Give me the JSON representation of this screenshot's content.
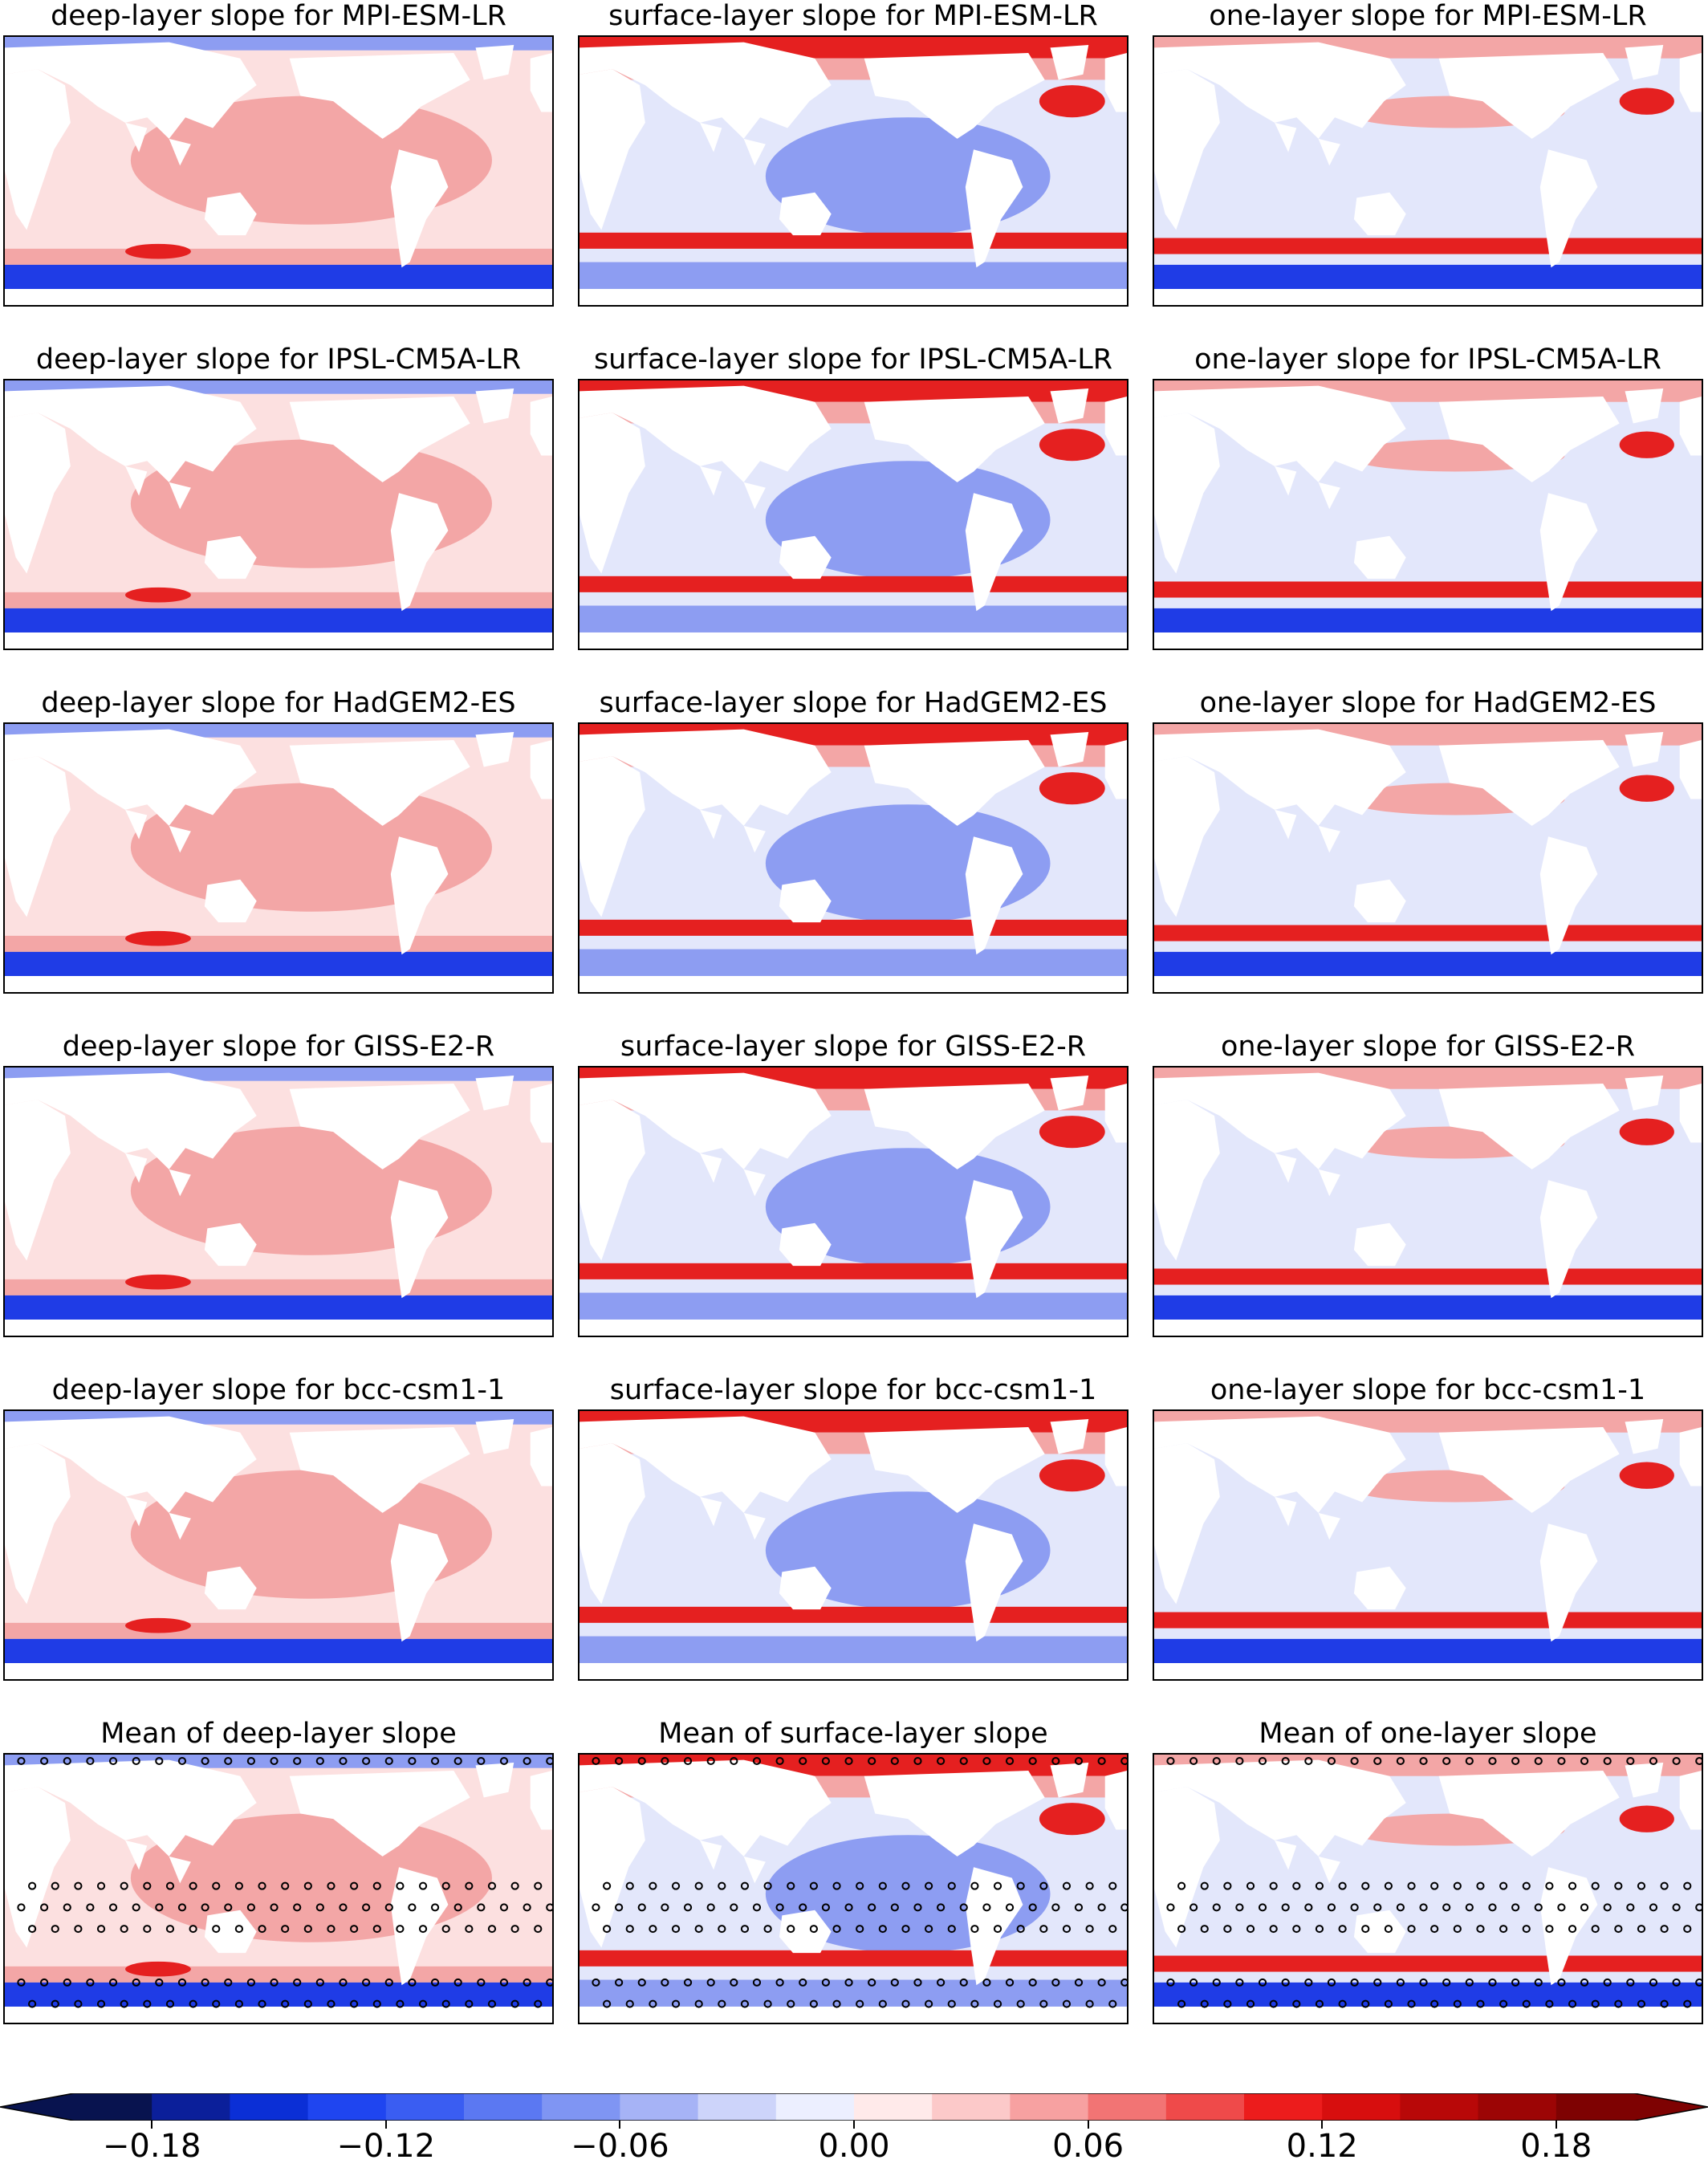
{
  "panels": [
    {
      "title": "deep-layer slope for MPI-ESM-LR",
      "layer": "deep",
      "model": "MPI-ESM-LR"
    },
    {
      "title": "surface-layer slope for MPI-ESM-LR",
      "layer": "surface",
      "model": "MPI-ESM-LR"
    },
    {
      "title": "one-layer slope for MPI-ESM-LR",
      "layer": "one",
      "model": "MPI-ESM-LR"
    },
    {
      "title": "deep-layer slope for IPSL-CM5A-LR",
      "layer": "deep",
      "model": "IPSL-CM5A-LR"
    },
    {
      "title": "surface-layer slope for IPSL-CM5A-LR",
      "layer": "surface",
      "model": "IPSL-CM5A-LR"
    },
    {
      "title": "one-layer slope for IPSL-CM5A-LR",
      "layer": "one",
      "model": "IPSL-CM5A-LR"
    },
    {
      "title": "deep-layer slope for HadGEM2-ES",
      "layer": "deep",
      "model": "HadGEM2-ES"
    },
    {
      "title": "surface-layer slope for HadGEM2-ES",
      "layer": "surface",
      "model": "HadGEM2-ES"
    },
    {
      "title": "one-layer slope for HadGEM2-ES",
      "layer": "one",
      "model": "HadGEM2-ES"
    },
    {
      "title": "deep-layer slope for GISS-E2-R",
      "layer": "deep",
      "model": "GISS-E2-R"
    },
    {
      "title": "surface-layer slope for GISS-E2-R",
      "layer": "surface",
      "model": "GISS-E2-R"
    },
    {
      "title": "one-layer slope for GISS-E2-R",
      "layer": "one",
      "model": "GISS-E2-R"
    },
    {
      "title": "deep-layer slope for bcc-csm1-1",
      "layer": "deep",
      "model": "bcc-csm1-1"
    },
    {
      "title": "surface-layer slope for bcc-csm1-1",
      "layer": "surface",
      "model": "bcc-csm1-1"
    },
    {
      "title": "one-layer slope for bcc-csm1-1",
      "layer": "one",
      "model": "bcc-csm1-1"
    },
    {
      "title": "Mean of deep-layer slope",
      "layer": "deep",
      "model": "mean",
      "stippled": true
    },
    {
      "title": "Mean of surface-layer slope",
      "layer": "surface",
      "model": "mean",
      "stippled": true
    },
    {
      "title": "Mean of one-layer slope",
      "layer": "one",
      "model": "mean",
      "stippled": true
    }
  ],
  "colorbar": {
    "levels": [
      -0.2,
      -0.18,
      -0.16,
      -0.14,
      -0.12,
      -0.1,
      -0.08,
      -0.06,
      -0.04,
      -0.02,
      0.0,
      0.02,
      0.04,
      0.06,
      0.08,
      0.1,
      0.12,
      0.14,
      0.16,
      0.18,
      0.2
    ],
    "colors": [
      "#08134f",
      "#0b1f9a",
      "#0b2fd6",
      "#1f45f0",
      "#3a5df2",
      "#5b78f2",
      "#7f95f3",
      "#a6b3f6",
      "#cdd4fa",
      "#ecefff",
      "#ffeaea",
      "#fcc9c9",
      "#f7a1a1",
      "#f27474",
      "#ef4a4a",
      "#ec1c1c",
      "#d70e0e",
      "#b80808",
      "#9c0505",
      "#7e0202"
    ],
    "tick_labels": [
      "−0.18",
      "−0.12",
      "−0.06",
      "0.00",
      "0.06",
      "0.12",
      "0.18"
    ],
    "tick_values": [
      -0.18,
      -0.12,
      -0.06,
      0.0,
      0.06,
      0.12,
      0.18
    ],
    "extend": "both"
  },
  "colors": {
    "land": "#ffffff",
    "near_zero_pos": "#fce0e0",
    "near_zero_neg": "#e3e7fb",
    "positive": "#f3a6a6",
    "negative": "#8d9df2",
    "strong_positive": "#e52020",
    "strong_negative": "#1f3ce6",
    "extreme_positive": "#8b0000",
    "extreme_negative": "#071b7a"
  }
}
